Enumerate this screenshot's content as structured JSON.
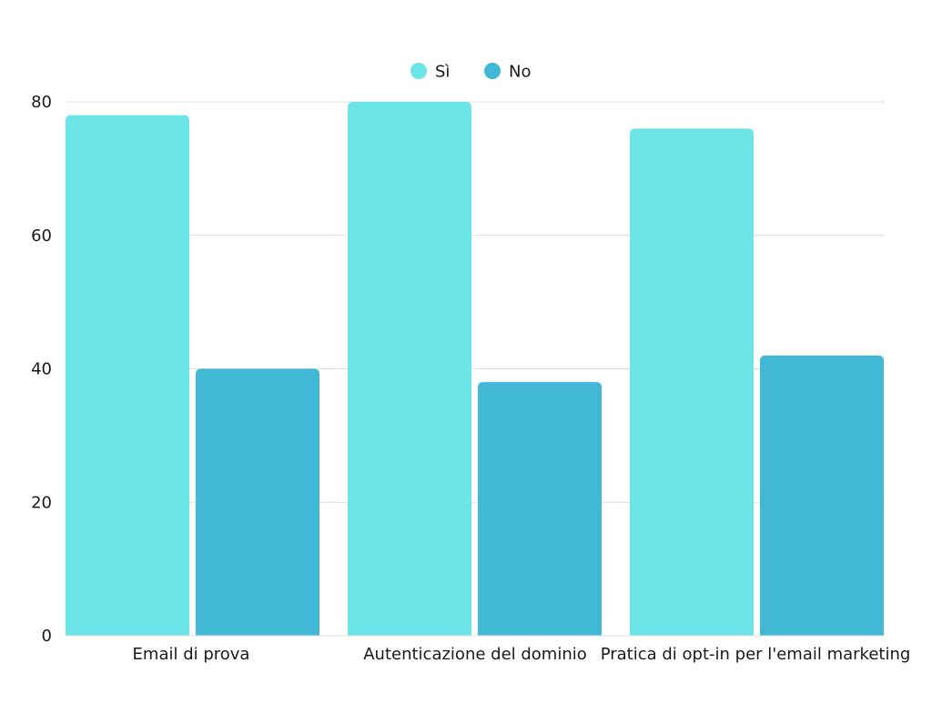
{
  "chart_data": {
    "type": "bar",
    "categories": [
      "Email di prova",
      "Autenticazione del dominio",
      "Pratica di opt-in per l'email marketing"
    ],
    "series": [
      {
        "name": "Sì",
        "color": "#6ce5e8",
        "values": [
          78,
          80,
          76
        ]
      },
      {
        "name": "No",
        "color": "#41b8d5",
        "values": [
          40,
          38,
          42
        ]
      }
    ],
    "yticks": [
      0,
      20,
      40,
      60,
      80
    ],
    "ylim": [
      0,
      80
    ],
    "grid": true,
    "legend_position": "top-center",
    "gridline_color": "#dddddd"
  }
}
